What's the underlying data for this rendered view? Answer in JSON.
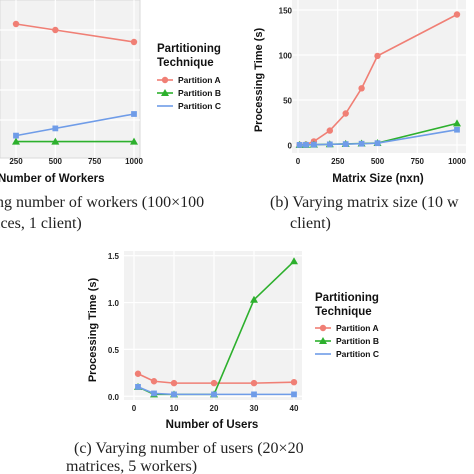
{
  "legend_title_lines": [
    "Partitioning",
    "Technique"
  ],
  "captions": {
    "a": [
      "ng number of workers (100×100",
      "ices, 1 client)"
    ],
    "b": [
      "(b) Varying matrix size (10 w",
      "client)"
    ],
    "c": [
      "(c) Varying number of users (20×20",
      "matrices, 5 workers)"
    ]
  },
  "colors": {
    "Partition A": "#F07F75",
    "Partition B": "#2DB02D",
    "Partition C": "#6F9CE8"
  },
  "chart_data": [
    {
      "id": "a",
      "type": "line",
      "xlabel": "Number of Workers",
      "ylabel": "",
      "x_ticks": [
        "250",
        "500",
        "750",
        "1000"
      ],
      "x": [
        250,
        500,
        750,
        1000
      ],
      "y_ticks": [],
      "legend": {
        "title": "Partitioning Technique",
        "position": "right",
        "entries": [
          "Partition A",
          "Partition B",
          "Partition C"
        ]
      },
      "series": [
        {
          "name": "Partition A",
          "marker": "circle",
          "values": [
            1.05,
            1.0,
            null,
            0.9
          ]
        },
        {
          "name": "Partition B",
          "marker": "triangle",
          "values": [
            0.07,
            0.07,
            null,
            0.07
          ]
        },
        {
          "name": "Partition C",
          "marker": "square",
          "values": [
            0.12,
            0.18,
            null,
            0.3
          ]
        }
      ],
      "ylim": [
        0,
        1.2
      ],
      "grid": true
    },
    {
      "id": "b",
      "type": "line",
      "xlabel": "Matrix Size (nxn)",
      "ylabel": "Processing Time (s)",
      "x_ticks": [
        "0",
        "250",
        "500",
        "750",
        "1000"
      ],
      "y_ticks": [
        "0",
        "50",
        "100",
        "150"
      ],
      "series": [
        {
          "name": "Partition A",
          "marker": "circle",
          "x": [
            10,
            50,
            100,
            200,
            300,
            400,
            500,
            1000
          ],
          "values": [
            0.2,
            0.5,
            4,
            16,
            35,
            63,
            99,
            145
          ]
        },
        {
          "name": "Partition B",
          "marker": "triangle",
          "x": [
            10,
            50,
            100,
            200,
            300,
            400,
            500,
            1000
          ],
          "values": [
            0.1,
            0.2,
            0.4,
            0.8,
            1.2,
            1.6,
            2.2,
            24
          ]
        },
        {
          "name": "Partition C",
          "marker": "square",
          "x": [
            10,
            50,
            100,
            200,
            300,
            400,
            500,
            1000
          ],
          "values": [
            0.1,
            0.2,
            0.4,
            0.7,
            1.0,
            1.4,
            2.0,
            17
          ]
        }
      ],
      "xlim": [
        0,
        1000
      ],
      "ylim": [
        0,
        150
      ],
      "grid": true
    },
    {
      "id": "c",
      "type": "line",
      "xlabel": "Number of Users",
      "ylabel": "Processing Time (s)",
      "x_ticks": [
        "0",
        "10",
        "20",
        "30",
        "40"
      ],
      "y_ticks": [
        "0.0",
        "0.5",
        "1.0",
        "1.5"
      ],
      "legend": {
        "title": "Partitioning Technique",
        "position": "right",
        "entries": [
          "Partition A",
          "Partition B",
          "Partition C"
        ]
      },
      "series": [
        {
          "name": "Partition A",
          "marker": "circle",
          "x": [
            1,
            5,
            10,
            20,
            30,
            40
          ],
          "values": [
            0.24,
            0.16,
            0.14,
            0.14,
            0.14,
            0.15
          ]
        },
        {
          "name": "Partition B",
          "marker": "triangle",
          "x": [
            1,
            5,
            10,
            20,
            30,
            40
          ],
          "values": [
            0.1,
            0.02,
            0.02,
            0.02,
            1.03,
            1.44
          ]
        },
        {
          "name": "Partition C",
          "marker": "square",
          "x": [
            1,
            5,
            10,
            20,
            30,
            40
          ],
          "values": [
            0.1,
            0.03,
            0.02,
            0.02,
            0.02,
            0.02
          ]
        }
      ],
      "xlim": [
        -1,
        41
      ],
      "ylim": [
        -0.04,
        1.55
      ],
      "grid": true
    }
  ]
}
